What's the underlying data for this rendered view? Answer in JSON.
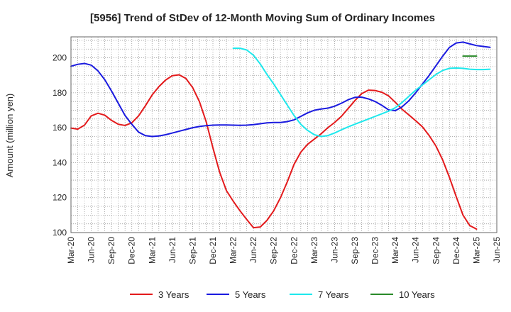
{
  "chart_data": {
    "type": "line",
    "title": "[5956]  Trend of StDev of 12-Month Moving Sum of Ordinary Incomes",
    "ylabel": "Amount (million yen)",
    "xlabel": "",
    "ylim": [
      100,
      212
    ],
    "yticks": [
      100,
      120,
      140,
      160,
      180,
      200
    ],
    "xticks": [
      "Mar-20",
      "Jun-20",
      "Sep-20",
      "Dec-20",
      "Mar-21",
      "Jun-21",
      "Sep-21",
      "Dec-21",
      "Mar-22",
      "Jun-22",
      "Sep-22",
      "Dec-22",
      "Mar-23",
      "Jun-23",
      "Sep-23",
      "Dec-23",
      "Mar-24",
      "Jun-24",
      "Sep-24",
      "Dec-24",
      "Mar-25",
      "Jun-25"
    ],
    "grid": true,
    "legend_position": "bottom",
    "series": [
      {
        "name": "3 Years",
        "color": "#e31a1c",
        "start": "Mar-20",
        "values": [
          159.8,
          159.2,
          161.5,
          166.8,
          168.3,
          167.2,
          164.2,
          162,
          161.3,
          162.8,
          166.8,
          172.5,
          178.7,
          183.5,
          187.3,
          189.8,
          190.3,
          188.2,
          183,
          175,
          163.5,
          148.5,
          134.5,
          124,
          118,
          112.5,
          107.5,
          102.8,
          103.2,
          107,
          112.5,
          120,
          129,
          139,
          146,
          150.5,
          153.5,
          156.5,
          160,
          163,
          166.5,
          171,
          175.5,
          179.5,
          181.5,
          181.3,
          180.3,
          178.2,
          174.5,
          170.5,
          167.3,
          164,
          160.5,
          155.5,
          149.5,
          141.5,
          131.5,
          120.5,
          110,
          104,
          102
        ]
      },
      {
        "name": "5 Years",
        "color": "#1a1adf",
        "start": "Mar-20",
        "values": [
          195.2,
          196.3,
          196.8,
          195.8,
          192.5,
          187.5,
          181,
          174,
          167,
          162,
          157.5,
          155.5,
          155,
          155.3,
          156,
          157,
          158,
          159,
          160,
          160.7,
          161.2,
          161.5,
          161.6,
          161.6,
          161.5,
          161.4,
          161.5,
          161.8,
          162.3,
          162.8,
          163,
          163,
          163.5,
          164.5,
          166.5,
          168.5,
          170,
          170.7,
          171.2,
          172.3,
          174,
          176,
          177.4,
          177.5,
          176.5,
          175,
          172.8,
          170.2,
          169.8,
          172,
          175.5,
          180,
          185,
          190,
          195.5,
          201,
          206,
          208.5,
          209,
          208,
          207,
          206.5,
          206
        ]
      },
      {
        "name": "7 Years",
        "color": "#1ee8ec",
        "start": "Mar-22",
        "values": [
          205.5,
          205.5,
          204.5,
          201.5,
          196.5,
          190.5,
          185,
          179,
          173,
          167,
          162,
          158.5,
          156,
          155,
          155.5,
          157,
          158.8,
          160.5,
          162,
          163.5,
          165,
          166.5,
          168,
          169.5,
          171.5,
          174.5,
          178,
          181.5,
          184.5,
          187.5,
          190.5,
          192.8,
          194,
          194.2,
          194,
          193.5,
          193.3,
          193.3,
          193.5
        ]
      },
      {
        "name": "10 Years",
        "color": "#2a8a2a",
        "start": "Jan-25",
        "values": [
          201,
          201,
          201
        ]
      }
    ]
  }
}
